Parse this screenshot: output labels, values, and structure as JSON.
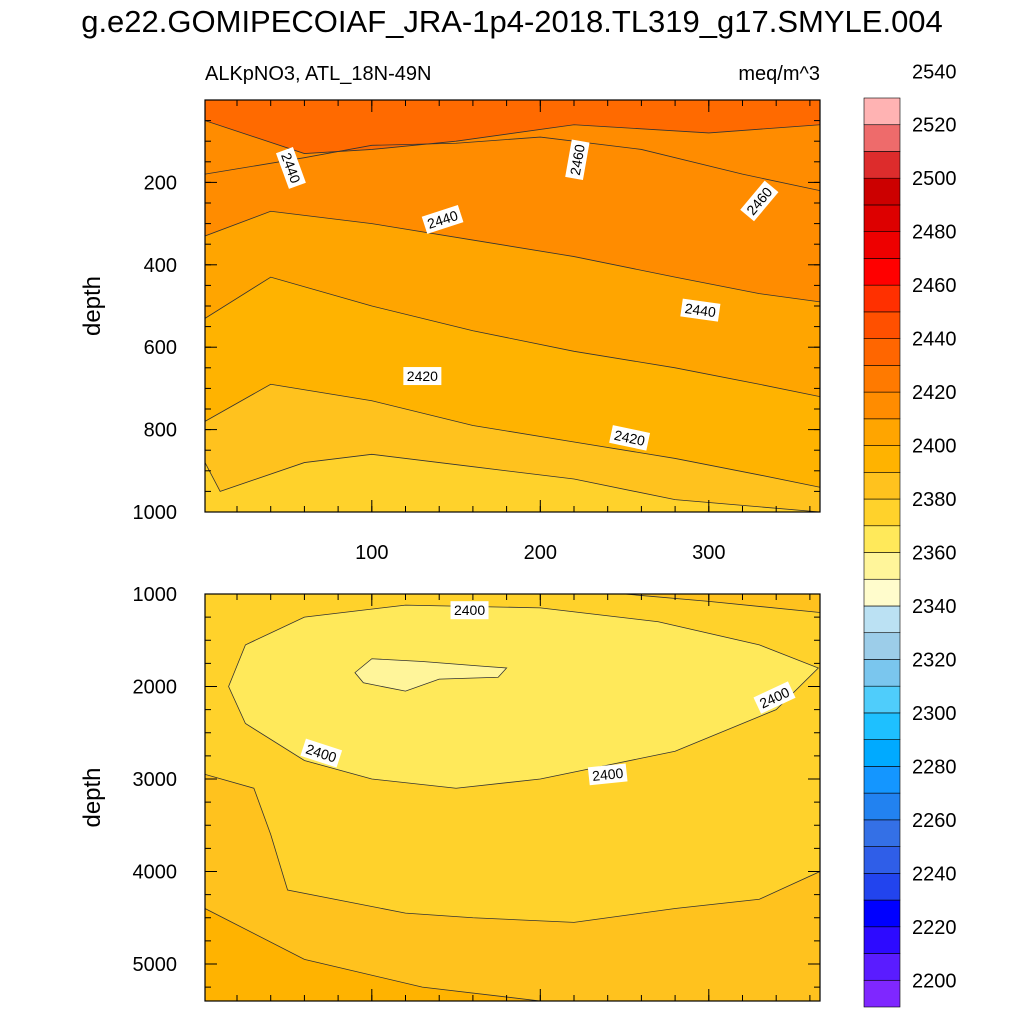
{
  "title": "g.e22.GOMIPECOIAF_JRA-1p4-2018.TL319_g17.SMYLE.004",
  "chart_data": [
    {
      "type": "heatmap",
      "panel": "upper",
      "left_label": "ALKpNO3, ATL_18N-49N",
      "right_label": "meq/m^3",
      "ylabel": "depth",
      "xlabel": "",
      "xlim": [
        1,
        366
      ],
      "ylim": [
        0,
        1000
      ],
      "y_reversed": true,
      "xticks": [
        100,
        200,
        300
      ],
      "yticks": [
        200,
        400,
        600,
        800,
        1000
      ],
      "regions": [
        {
          "level": 2460,
          "depth": [
            [
              1,
              50
            ],
            [
              60,
              130
            ],
            [
              100,
              120
            ],
            [
              150,
              100
            ],
            [
              220,
              60
            ],
            [
              300,
              80
            ],
            [
              366,
              60
            ]
          ],
          "color": "#ff6600"
        },
        {
          "level": 2440,
          "depth": [
            [
              1,
              180
            ],
            [
              60,
              140
            ],
            [
              100,
              110
            ],
            [
              150,
              105
            ],
            [
              200,
              90
            ],
            [
              260,
              120
            ],
            [
              320,
              180
            ],
            [
              366,
              220
            ]
          ],
          "color": "#ff8c00"
        },
        {
          "level": 2430,
          "depth": [
            [
              1,
              330
            ],
            [
              40,
              270
            ],
            [
              100,
              300
            ],
            [
              160,
              340
            ],
            [
              220,
              380
            ],
            [
              280,
              430
            ],
            [
              330,
              470
            ],
            [
              366,
              490
            ]
          ],
          "color": "#ffa500"
        },
        {
          "level": 2420,
          "depth": [
            [
              1,
              530
            ],
            [
              40,
              430
            ],
            [
              100,
              500
            ],
            [
              160,
              560
            ],
            [
              220,
              610
            ],
            [
              280,
              650
            ],
            [
              330,
              690
            ],
            [
              366,
              720
            ]
          ],
          "color": "#ffb300"
        },
        {
          "level": 2410,
          "depth": [
            [
              1,
              780
            ],
            [
              40,
              690
            ],
            [
              100,
              730
            ],
            [
              160,
              790
            ],
            [
              220,
              830
            ],
            [
              280,
              870
            ],
            [
              330,
              910
            ],
            [
              366,
              940
            ]
          ],
          "color": "#ffc21e"
        },
        {
          "level": 2400,
          "depth": [
            [
              1,
              880
            ],
            [
              10,
              950
            ],
            [
              60,
              880
            ],
            [
              100,
              860
            ],
            [
              160,
              890
            ],
            [
              220,
              920
            ],
            [
              280,
              970
            ],
            [
              366,
              1000
            ]
          ],
          "color": "#ffd22b"
        }
      ],
      "contour_labels": [
        {
          "text": "2440",
          "x": 52,
          "y": 165,
          "angle": 70
        },
        {
          "text": "2460",
          "x": 222,
          "y": 145,
          "angle": -80
        },
        {
          "text": "2460",
          "x": 330,
          "y": 245,
          "angle": -50
        },
        {
          "text": "2440",
          "x": 142,
          "y": 290,
          "angle": -18
        },
        {
          "text": "2440",
          "x": 295,
          "y": 510,
          "angle": 8
        },
        {
          "text": "2420",
          "x": 130,
          "y": 670,
          "angle": 0
        },
        {
          "text": "2420",
          "x": 253,
          "y": 820,
          "angle": 12
        }
      ]
    },
    {
      "type": "heatmap",
      "panel": "lower",
      "ylabel": "depth",
      "xlabel": "",
      "xlim": [
        1,
        366
      ],
      "ylim": [
        1000,
        5400
      ],
      "y_reversed": true,
      "xticks": [
        100,
        200,
        300
      ],
      "yticks": [
        1000,
        2000,
        3000,
        4000,
        5000
      ],
      "regions": [
        {
          "level": 2410,
          "color": "#ffc21e"
        },
        {
          "level": 2400,
          "color": "#ffd22b"
        },
        {
          "level": 2390,
          "color": "#ffe95a"
        },
        {
          "level": 2380,
          "color": "#fff59a"
        }
      ],
      "contour_labels": [
        {
          "text": "2400",
          "x": 158,
          "y": 1175,
          "angle": 0
        },
        {
          "text": "2400",
          "x": 70,
          "y": 2720,
          "angle": 18
        },
        {
          "text": "2400",
          "x": 240,
          "y": 2950,
          "angle": -6
        },
        {
          "text": "2400",
          "x": 339,
          "y": 2120,
          "angle": -25
        }
      ]
    }
  ],
  "colorbar": {
    "levels": [
      2200,
      2220,
      2240,
      2260,
      2280,
      2300,
      2320,
      2340,
      2360,
      2380,
      2400,
      2420,
      2440,
      2460,
      2480,
      2500,
      2520,
      2540
    ],
    "colors": [
      "#7f27ff",
      "#5a1cff",
      "#2d0aff",
      "#0000ff",
      "#2244ee",
      "#2f5ee8",
      "#3470e6",
      "#2282f0",
      "#1496ff",
      "#00aaff",
      "#1ec0ff",
      "#4fcdfb",
      "#7ac6ee",
      "#9ccde9",
      "#bbe1f3",
      "#fffccc",
      "#fff59a",
      "#ffe95a",
      "#ffd22b",
      "#ffc21e",
      "#ffb300",
      "#ffa500",
      "#ff8c00",
      "#ff7a00",
      "#ff6600",
      "#ff5000",
      "#ff3000",
      "#ff0000",
      "#ee0000",
      "#dd0000",
      "#cc0000",
      "#dd2c2c",
      "#ee6b6b",
      "#ffb3b3"
    ]
  }
}
